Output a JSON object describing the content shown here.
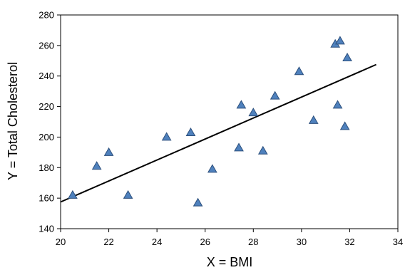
{
  "chart_data": {
    "type": "scatter",
    "title": "",
    "xlabel": "X = BMI",
    "ylabel": "Y = Total Cholesterol",
    "xlim": [
      20,
      34
    ],
    "ylim": [
      140,
      280
    ],
    "xticks": [
      20,
      22,
      24,
      26,
      28,
      30,
      32,
      34
    ],
    "yticks": [
      140,
      160,
      180,
      200,
      220,
      240,
      260,
      280
    ],
    "grid": false,
    "legend": "none",
    "marker": "triangle",
    "marker_color": "#4f81bd",
    "marker_edge_color": "#2c4f7c",
    "points": [
      {
        "x": 20.5,
        "y": 162
      },
      {
        "x": 21.5,
        "y": 181
      },
      {
        "x": 22.0,
        "y": 190
      },
      {
        "x": 22.8,
        "y": 162
      },
      {
        "x": 24.4,
        "y": 200
      },
      {
        "x": 25.4,
        "y": 203
      },
      {
        "x": 25.7,
        "y": 157
      },
      {
        "x": 26.3,
        "y": 179
      },
      {
        "x": 27.4,
        "y": 193
      },
      {
        "x": 27.5,
        "y": 221
      },
      {
        "x": 28.0,
        "y": 216
      },
      {
        "x": 28.4,
        "y": 191
      },
      {
        "x": 28.9,
        "y": 227
      },
      {
        "x": 29.9,
        "y": 243
      },
      {
        "x": 30.5,
        "y": 211
      },
      {
        "x": 31.4,
        "y": 261
      },
      {
        "x": 31.5,
        "y": 221
      },
      {
        "x": 31.6,
        "y": 263
      },
      {
        "x": 31.8,
        "y": 207
      },
      {
        "x": 31.9,
        "y": 252
      }
    ],
    "trendline": {
      "x": [
        20,
        33.1
      ],
      "y": [
        157.5,
        247.5
      ],
      "color": "#000000"
    }
  }
}
